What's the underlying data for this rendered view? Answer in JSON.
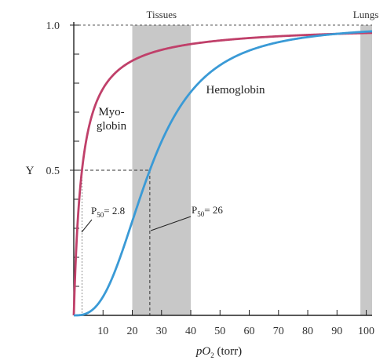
{
  "chart_data": {
    "type": "line",
    "xlabel": {
      "prefix": "pO",
      "sub": "2",
      "suffix": " (torr)"
    },
    "ylabel": "Y",
    "xlim": [
      0,
      102
    ],
    "ylim": [
      0,
      1.0
    ],
    "x_ticks": [
      10,
      20,
      30,
      40,
      50,
      60,
      70,
      80,
      90,
      100
    ],
    "y_ticks": [
      {
        "value": 0.5,
        "label": "0.5"
      },
      {
        "value": 1.0,
        "label": "1.0"
      }
    ],
    "y_minor_ticks": [
      0.1,
      0.2,
      0.3,
      0.4,
      0.6,
      0.7,
      0.8,
      0.9
    ],
    "regions": [
      {
        "name": "Tissues",
        "from": 20,
        "to": 40,
        "color": "#c8c8c8"
      },
      {
        "name": "Lungs",
        "from": 98,
        "to": 102,
        "color": "#c8c8c8"
      }
    ],
    "series": [
      {
        "id": "myoglobin",
        "label_lines": [
          "Myo-",
          "globin"
        ],
        "color": "#c0406a",
        "p50": 2.8,
        "hill_n": 1.0
      },
      {
        "id": "hemoglobin",
        "label_lines": [
          "Hemoglobin"
        ],
        "color": "#3a9ad6",
        "p50": 26,
        "hill_n": 2.8
      }
    ],
    "annotations": [
      {
        "id": "p50-myoglobin",
        "prefix": "P",
        "sub": "50",
        "value": "= 2.8"
      },
      {
        "id": "p50-hemoglobin",
        "prefix": "P",
        "sub": "50",
        "value": "= 26"
      }
    ]
  }
}
